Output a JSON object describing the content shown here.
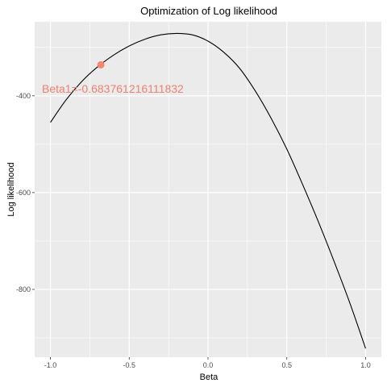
{
  "chart_data": {
    "type": "line",
    "title": "Optimization of Log likelihood",
    "xlabel": "Beta",
    "ylabel": "Log likelihood",
    "xlim": [
      -1.1,
      1.1
    ],
    "ylim": [
      -940,
      -247
    ],
    "x_ticks": [
      -1.0,
      -0.5,
      0.0,
      0.5,
      1.0
    ],
    "x_tick_labels": [
      "-1.0",
      "-0.5",
      "0.0",
      "0.5",
      "1.0"
    ],
    "y_ticks": [
      -400,
      -600,
      -800
    ],
    "y_tick_labels": [
      "-400",
      "-600",
      "-800"
    ],
    "grid": true,
    "series": [
      {
        "x": [
          -1.0,
          -0.9,
          -0.8,
          -0.7,
          -0.6,
          -0.5,
          -0.4,
          -0.3,
          -0.2,
          -0.1,
          0.0,
          0.1,
          0.2,
          0.3,
          0.4,
          0.5,
          0.6,
          0.7,
          0.8,
          0.9,
          1.0
        ],
        "y": [
          -455,
          -408,
          -370,
          -340,
          -316,
          -297,
          -283,
          -274,
          -271,
          -274,
          -287,
          -310,
          -343,
          -390,
          -446,
          -510,
          -583,
          -660,
          -742,
          -828,
          -922
        ]
      }
    ],
    "highlight_point": {
      "x": -0.68,
      "y": -336
    },
    "annotation": {
      "text": "Beta1=-0.683761216111832"
    },
    "colors": {
      "panel": "#ebebeb",
      "grid": "#ffffff",
      "line": "#000000",
      "point": "#f4876e",
      "annotation": "#f08070"
    }
  }
}
